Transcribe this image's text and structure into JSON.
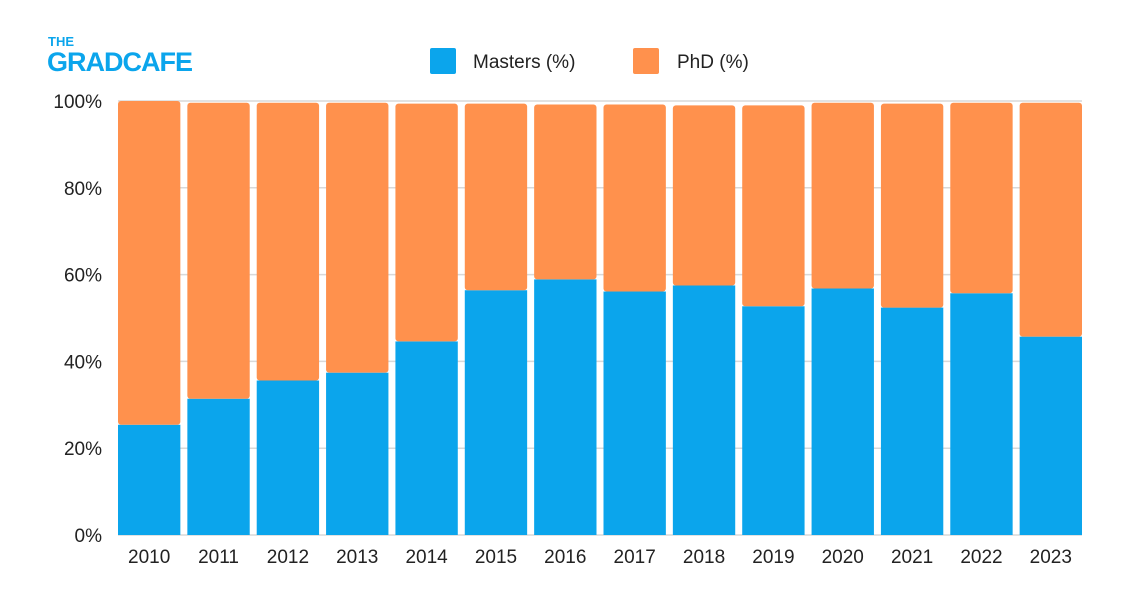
{
  "logo": {
    "line1": "THE",
    "line2": "GRADCAFE"
  },
  "colors": {
    "masters": "#0BA5EC",
    "phd": "#FF914D",
    "grid": "#d9d9d9",
    "logo": "#0BA5EC"
  },
  "chart_data": {
    "type": "bar",
    "stacked": true,
    "categories": [
      "2010",
      "2011",
      "2012",
      "2013",
      "2014",
      "2015",
      "2016",
      "2017",
      "2018",
      "2019",
      "2020",
      "2021",
      "2022",
      "2023"
    ],
    "series": [
      {
        "name": "Masters (%)",
        "values": [
          25.4,
          31.4,
          35.6,
          37.4,
          44.6,
          56.4,
          58.9,
          56.1,
          57.5,
          52.7,
          56.8,
          52.4,
          55.7,
          45.7
        ]
      },
      {
        "name": "PhD (%)",
        "values": [
          74.6,
          68.2,
          64.0,
          62.2,
          54.8,
          43.0,
          40.3,
          43.1,
          41.5,
          46.3,
          42.8,
          47.0,
          43.9,
          53.9
        ]
      }
    ],
    "yticks": [
      "0%",
      "20%",
      "40%",
      "60%",
      "80%",
      "100%"
    ],
    "ylim": [
      0,
      100
    ],
    "grid": true,
    "legend": "top-center"
  }
}
